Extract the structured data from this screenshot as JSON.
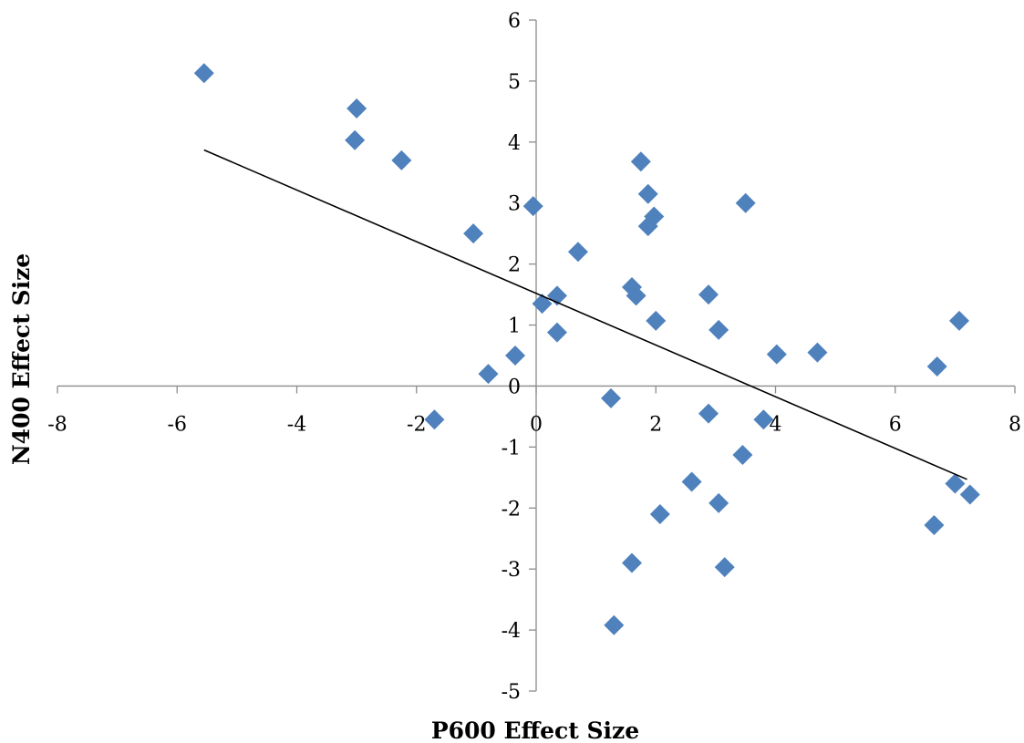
{
  "chart_data": {
    "type": "scatter",
    "xlabel": "P600 Effect Size",
    "ylabel": "N400 Effect Size",
    "xlim": [
      -8,
      8
    ],
    "ylim": [
      -5,
      6
    ],
    "x_ticks": [
      -8,
      -6,
      -4,
      -2,
      0,
      2,
      4,
      6,
      8
    ],
    "y_ticks": [
      -5,
      -4,
      -3,
      -2,
      -1,
      0,
      1,
      2,
      3,
      4,
      5,
      6
    ],
    "grid": false,
    "legend": "none",
    "marker": "diamond",
    "marker_color": "#4f81bd",
    "trendline": {
      "type": "linear",
      "from": [
        -5.55,
        3.87
      ],
      "to": [
        7.2,
        -1.53
      ],
      "color": "#000000"
    },
    "points": [
      [
        -5.55,
        5.13
      ],
      [
        -3.0,
        4.55
      ],
      [
        -3.03,
        4.03
      ],
      [
        -2.25,
        3.7
      ],
      [
        -1.05,
        2.5
      ],
      [
        -1.7,
        -0.55
      ],
      [
        -0.8,
        0.2
      ],
      [
        -0.35,
        0.5
      ],
      [
        -0.05,
        2.95
      ],
      [
        0.1,
        1.35
      ],
      [
        0.35,
        0.88
      ],
      [
        0.35,
        1.48
      ],
      [
        0.7,
        2.2
      ],
      [
        1.25,
        -0.2
      ],
      [
        1.3,
        -3.92
      ],
      [
        1.6,
        -2.9
      ],
      [
        1.6,
        1.62
      ],
      [
        1.67,
        1.48
      ],
      [
        1.75,
        3.68
      ],
      [
        1.87,
        3.15
      ],
      [
        1.87,
        2.62
      ],
      [
        1.97,
        2.78
      ],
      [
        2.0,
        1.07
      ],
      [
        2.07,
        -2.1
      ],
      [
        2.6,
        -1.57
      ],
      [
        2.88,
        1.5
      ],
      [
        2.88,
        -0.45
      ],
      [
        3.05,
        0.92
      ],
      [
        3.05,
        -1.92
      ],
      [
        3.15,
        -2.97
      ],
      [
        3.45,
        -1.13
      ],
      [
        3.5,
        3.0
      ],
      [
        3.8,
        -0.55
      ],
      [
        4.02,
        0.52
      ],
      [
        4.7,
        0.55
      ],
      [
        6.65,
        -2.28
      ],
      [
        6.7,
        0.32
      ],
      [
        7.0,
        -1.6
      ],
      [
        7.07,
        1.07
      ],
      [
        7.25,
        -1.78
      ]
    ]
  }
}
